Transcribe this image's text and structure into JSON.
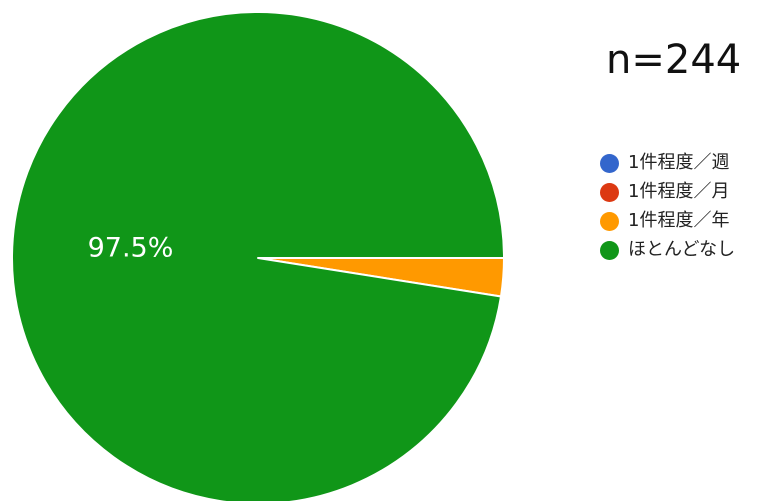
{
  "n_text": "n=244",
  "chart_data": {
    "type": "pie",
    "categories": [
      "1件程度／週",
      "1件程度／月",
      "1件程度／年",
      "ほとんどなし"
    ],
    "values": [
      0,
      0,
      2.5,
      97.5
    ],
    "unit": "%",
    "colors": [
      "#3366cc",
      "#dc3912",
      "#ff9900",
      "#109618"
    ],
    "data_labels": [
      "",
      "",
      "",
      "97.5%"
    ],
    "legend": "right"
  }
}
